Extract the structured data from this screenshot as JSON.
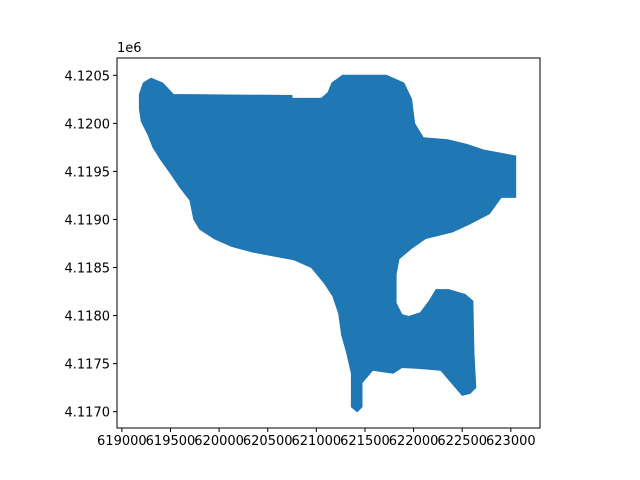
{
  "chart_data": {
    "type": "area",
    "title": "",
    "xlabel": "",
    "ylabel": "",
    "xlim": [
      618950,
      623300
    ],
    "ylim": [
      4116830,
      4120680
    ],
    "y_offset_text": "1e6",
    "x_ticks": [
      {
        "value": 619000,
        "label": "619000"
      },
      {
        "value": 619500,
        "label": "619500"
      },
      {
        "value": 620000,
        "label": "620000"
      },
      {
        "value": 620500,
        "label": "620500"
      },
      {
        "value": 621000,
        "label": "621000"
      },
      {
        "value": 621500,
        "label": "621500"
      },
      {
        "value": 622000,
        "label": "622000"
      },
      {
        "value": 622500,
        "label": "622500"
      },
      {
        "value": 623000,
        "label": "623000"
      }
    ],
    "y_ticks": [
      {
        "value": 4117000,
        "label": "4.1170"
      },
      {
        "value": 4117500,
        "label": "4.1175"
      },
      {
        "value": 4118000,
        "label": "4.1180"
      },
      {
        "value": 4118500,
        "label": "4.1185"
      },
      {
        "value": 4119000,
        "label": "4.1190"
      },
      {
        "value": 4119500,
        "label": "4.1195"
      },
      {
        "value": 4120000,
        "label": "4.1200"
      },
      {
        "value": 4120500,
        "label": "4.1205"
      }
    ],
    "fill_color": "#1f77b4",
    "grid": false,
    "polygon": [
      [
        619180,
        4120150
      ],
      [
        619180,
        4120300
      ],
      [
        619220,
        4120420
      ],
      [
        619300,
        4120470
      ],
      [
        619420,
        4120420
      ],
      [
        619530,
        4120300
      ],
      [
        620750,
        4120290
      ],
      [
        620750,
        4120260
      ],
      [
        621050,
        4120260
      ],
      [
        621120,
        4120320
      ],
      [
        621160,
        4120420
      ],
      [
        621270,
        4120500
      ],
      [
        621720,
        4120500
      ],
      [
        621900,
        4120420
      ],
      [
        621980,
        4120250
      ],
      [
        622010,
        4120000
      ],
      [
        622100,
        4119850
      ],
      [
        622350,
        4119830
      ],
      [
        622550,
        4119780
      ],
      [
        622730,
        4119720
      ],
      [
        623050,
        4119660
      ],
      [
        623050,
        4119230
      ],
      [
        622900,
        4119230
      ],
      [
        622780,
        4119060
      ],
      [
        622570,
        4118950
      ],
      [
        622400,
        4118870
      ],
      [
        622120,
        4118800
      ],
      [
        621980,
        4118700
      ],
      [
        621850,
        4118590
      ],
      [
        621820,
        4118430
      ],
      [
        621820,
        4118130
      ],
      [
        621880,
        4118010
      ],
      [
        621950,
        4117990
      ],
      [
        622070,
        4118030
      ],
      [
        622160,
        4118150
      ],
      [
        622230,
        4118270
      ],
      [
        622360,
        4118270
      ],
      [
        622530,
        4118220
      ],
      [
        622610,
        4118150
      ],
      [
        622620,
        4117620
      ],
      [
        622640,
        4117250
      ],
      [
        622580,
        4117190
      ],
      [
        622500,
        4117170
      ],
      [
        622390,
        4117300
      ],
      [
        622280,
        4117430
      ],
      [
        622050,
        4117450
      ],
      [
        621880,
        4117460
      ],
      [
        621790,
        4117400
      ],
      [
        621580,
        4117430
      ],
      [
        621470,
        4117300
      ],
      [
        621470,
        4117050
      ],
      [
        621420,
        4117000
      ],
      [
        621360,
        4117050
      ],
      [
        621360,
        4117400
      ],
      [
        621310,
        4117620
      ],
      [
        621260,
        4117800
      ],
      [
        621230,
        4118020
      ],
      [
        621170,
        4118200
      ],
      [
        621080,
        4118340
      ],
      [
        620950,
        4118500
      ],
      [
        620770,
        4118580
      ],
      [
        620560,
        4118620
      ],
      [
        620350,
        4118660
      ],
      [
        620130,
        4118720
      ],
      [
        619950,
        4118800
      ],
      [
        619800,
        4118900
      ],
      [
        619740,
        4119000
      ],
      [
        619700,
        4119200
      ],
      [
        619600,
        4119330
      ],
      [
        619500,
        4119480
      ],
      [
        619400,
        4119620
      ],
      [
        619320,
        4119750
      ],
      [
        619270,
        4119880
      ],
      [
        619200,
        4120020
      ]
    ]
  }
}
